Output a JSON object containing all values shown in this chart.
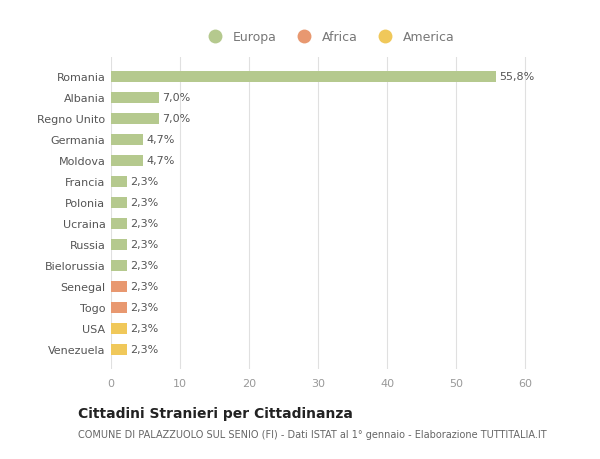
{
  "countries": [
    "Venezuela",
    "USA",
    "Togo",
    "Senegal",
    "Bielorussia",
    "Russia",
    "Ucraina",
    "Polonia",
    "Francia",
    "Moldova",
    "Germania",
    "Regno Unito",
    "Albania",
    "Romania"
  ],
  "values": [
    2.3,
    2.3,
    2.3,
    2.3,
    2.3,
    2.3,
    2.3,
    2.3,
    2.3,
    4.7,
    4.7,
    7.0,
    7.0,
    55.8
  ],
  "labels": [
    "2,3%",
    "2,3%",
    "2,3%",
    "2,3%",
    "2,3%",
    "2,3%",
    "2,3%",
    "2,3%",
    "2,3%",
    "4,7%",
    "4,7%",
    "7,0%",
    "7,0%",
    "55,8%"
  ],
  "continents": [
    "America",
    "America",
    "Africa",
    "Africa",
    "Europa",
    "Europa",
    "Europa",
    "Europa",
    "Europa",
    "Europa",
    "Europa",
    "Europa",
    "Europa",
    "Europa"
  ],
  "colors": {
    "Europa": "#b5c98e",
    "Africa": "#e89870",
    "America": "#f0c85a"
  },
  "background_color": "#ffffff",
  "grid_color": "#e0e0e0",
  "title": "Cittadini Stranieri per Cittadinanza",
  "subtitle": "COMUNE DI PALAZZUOLO SUL SENIO (FI) - Dati ISTAT al 1° gennaio - Elaborazione TUTTITALIA.IT",
  "xlim": [
    0,
    63
  ],
  "xticks": [
    0,
    10,
    20,
    30,
    40,
    50,
    60
  ]
}
